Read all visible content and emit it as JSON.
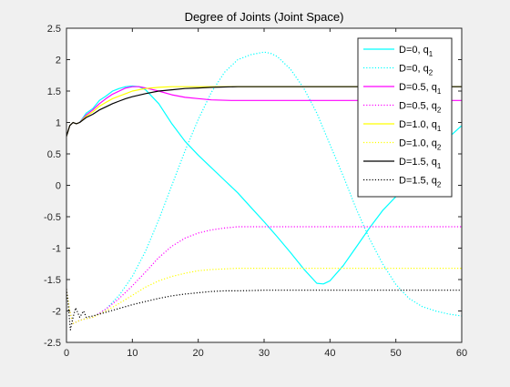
{
  "chart_data": {
    "type": "line",
    "title": "Degree of Joints (Joint Space)",
    "xlabel": "",
    "ylabel": "",
    "xlim": [
      0,
      60
    ],
    "ylim": [
      -2.5,
      2.5
    ],
    "xticks": [
      0,
      10,
      20,
      30,
      40,
      50,
      60
    ],
    "yticks": [
      -2.5,
      -2,
      -1.5,
      -1,
      -0.5,
      0,
      0.5,
      1,
      1.5,
      2,
      2.5
    ],
    "grid": false,
    "legend_position": "top-right",
    "series": [
      {
        "name": "D=0, q1",
        "label": "D=0, q",
        "subscript": "1",
        "color": "#00ffff",
        "style": "solid",
        "x": [
          0,
          0.5,
          1,
          1.5,
          2,
          3,
          4,
          5,
          6,
          7,
          8,
          9,
          10,
          11,
          12,
          14,
          16,
          18,
          20,
          22,
          24,
          26,
          28,
          30,
          32,
          34,
          36,
          38,
          39,
          40,
          42,
          44,
          46,
          48,
          50,
          52,
          54,
          56,
          58,
          60
        ],
        "y": [
          0.78,
          0.95,
          1.0,
          0.98,
          1.0,
          1.15,
          1.22,
          1.35,
          1.42,
          1.5,
          1.54,
          1.57,
          1.58,
          1.57,
          1.52,
          1.3,
          0.98,
          0.7,
          0.48,
          0.28,
          0.08,
          -0.12,
          -0.35,
          -0.58,
          -0.82,
          -1.07,
          -1.33,
          -1.56,
          -1.57,
          -1.52,
          -1.28,
          -0.98,
          -0.68,
          -0.4,
          -0.18,
          0.07,
          0.32,
          0.56,
          0.76,
          0.95
        ]
      },
      {
        "name": "D=0, q2",
        "label": "D=0, q",
        "subscript": "2",
        "color": "#00ffff",
        "style": "dotted",
        "x": [
          0,
          0.5,
          1,
          2,
          3,
          4,
          6,
          8,
          10,
          12,
          14,
          16,
          18,
          20,
          22,
          24,
          26,
          28,
          30,
          31,
          32,
          34,
          36,
          38,
          40,
          42,
          44,
          46,
          48,
          50,
          52,
          54,
          56,
          58,
          60
        ],
        "y": [
          -1.65,
          -2.0,
          -2.2,
          -2.15,
          -2.12,
          -2.1,
          -1.97,
          -1.75,
          -1.45,
          -1.05,
          -0.55,
          0.0,
          0.55,
          1.05,
          1.48,
          1.8,
          2.0,
          2.08,
          2.12,
          2.1,
          2.05,
          1.85,
          1.55,
          1.15,
          0.65,
          0.15,
          -0.38,
          -0.85,
          -1.25,
          -1.58,
          -1.8,
          -1.93,
          -2.0,
          -2.05,
          -2.08
        ]
      },
      {
        "name": "D=0.5, q1",
        "label": "D=0.5, q",
        "subscript": "1",
        "color": "#ff00ff",
        "style": "solid",
        "x": [
          0,
          0.5,
          1,
          1.5,
          2,
          3,
          4,
          5,
          6,
          7,
          8,
          9,
          10,
          11,
          12,
          14,
          16,
          18,
          20,
          22,
          25,
          30,
          35,
          40,
          45,
          50,
          55,
          60
        ],
        "y": [
          0.78,
          0.95,
          1.0,
          0.98,
          1.0,
          1.12,
          1.2,
          1.3,
          1.38,
          1.45,
          1.5,
          1.55,
          1.57,
          1.57,
          1.55,
          1.5,
          1.44,
          1.4,
          1.38,
          1.36,
          1.35,
          1.35,
          1.35,
          1.35,
          1.35,
          1.35,
          1.35,
          1.35
        ]
      },
      {
        "name": "D=0.5, q2",
        "label": "D=0.5, q",
        "subscript": "2",
        "color": "#ff00ff",
        "style": "dotted",
        "x": [
          0,
          0.5,
          1,
          2,
          3,
          4,
          6,
          8,
          10,
          12,
          14,
          16,
          18,
          20,
          22,
          24,
          26,
          28,
          30,
          35,
          40,
          50,
          60
        ],
        "y": [
          -1.65,
          -2.0,
          -2.2,
          -2.15,
          -2.12,
          -2.1,
          -1.97,
          -1.8,
          -1.6,
          -1.38,
          -1.15,
          -0.97,
          -0.84,
          -0.76,
          -0.71,
          -0.68,
          -0.66,
          -0.66,
          -0.66,
          -0.66,
          -0.66,
          -0.66,
          -0.66
        ]
      },
      {
        "name": "D=1.0, q1",
        "label": "D=1.0, q",
        "subscript": "1",
        "color": "#ffff00",
        "style": "solid",
        "x": [
          0,
          0.5,
          1,
          1.5,
          2,
          3,
          4,
          5,
          6,
          7,
          8,
          9,
          10,
          12,
          14,
          16,
          18,
          20,
          25,
          30,
          40,
          50,
          60
        ],
        "y": [
          0.78,
          0.95,
          1.0,
          0.98,
          1.0,
          1.1,
          1.17,
          1.26,
          1.32,
          1.38,
          1.42,
          1.46,
          1.5,
          1.54,
          1.56,
          1.57,
          1.57,
          1.57,
          1.57,
          1.57,
          1.57,
          1.57,
          1.57
        ]
      },
      {
        "name": "D=1.0, q2",
        "label": "D=1.0, q",
        "subscript": "2",
        "color": "#ffff00",
        "style": "dotted",
        "x": [
          0,
          0.5,
          1,
          2,
          3,
          4,
          6,
          8,
          10,
          12,
          14,
          16,
          18,
          20,
          22,
          24,
          26,
          28,
          30,
          35,
          40,
          50,
          60
        ],
        "y": [
          -1.65,
          -2.0,
          -2.2,
          -2.15,
          -2.12,
          -2.1,
          -2.0,
          -1.88,
          -1.75,
          -1.62,
          -1.52,
          -1.45,
          -1.4,
          -1.36,
          -1.34,
          -1.33,
          -1.32,
          -1.32,
          -1.32,
          -1.32,
          -1.32,
          -1.32,
          -1.32
        ]
      },
      {
        "name": "D=1.5, q1",
        "label": "D=1.5, q",
        "subscript": "1",
        "color": "#000000",
        "style": "solid",
        "x": [
          0,
          0.5,
          1,
          1.5,
          2,
          3,
          4,
          5,
          6,
          7,
          8,
          9,
          10,
          12,
          14,
          16,
          18,
          20,
          22,
          24,
          26,
          28,
          30,
          40,
          50,
          60
        ],
        "y": [
          0.78,
          0.95,
          1.0,
          0.98,
          1.0,
          1.08,
          1.13,
          1.2,
          1.25,
          1.3,
          1.34,
          1.38,
          1.41,
          1.46,
          1.5,
          1.52,
          1.54,
          1.55,
          1.56,
          1.565,
          1.57,
          1.57,
          1.57,
          1.57,
          1.57,
          1.57
        ]
      },
      {
        "name": "D=1.5, q2",
        "label": "D=1.5, q",
        "subscript": "2",
        "color": "#000000",
        "style": "dotted",
        "x": [
          0,
          0.3,
          0.6,
          1,
          1.4,
          2,
          2.6,
          3,
          4,
          6,
          8,
          10,
          12,
          14,
          16,
          18,
          20,
          22,
          24,
          26,
          28,
          30,
          35,
          40,
          50,
          60
        ],
        "y": [
          -1.65,
          -1.95,
          -2.3,
          -2.1,
          -1.95,
          -2.1,
          -2.0,
          -2.1,
          -2.08,
          -2.02,
          -1.96,
          -1.9,
          -1.85,
          -1.8,
          -1.76,
          -1.73,
          -1.71,
          -1.69,
          -1.68,
          -1.68,
          -1.675,
          -1.67,
          -1.67,
          -1.67,
          -1.67,
          -1.67
        ]
      }
    ]
  }
}
